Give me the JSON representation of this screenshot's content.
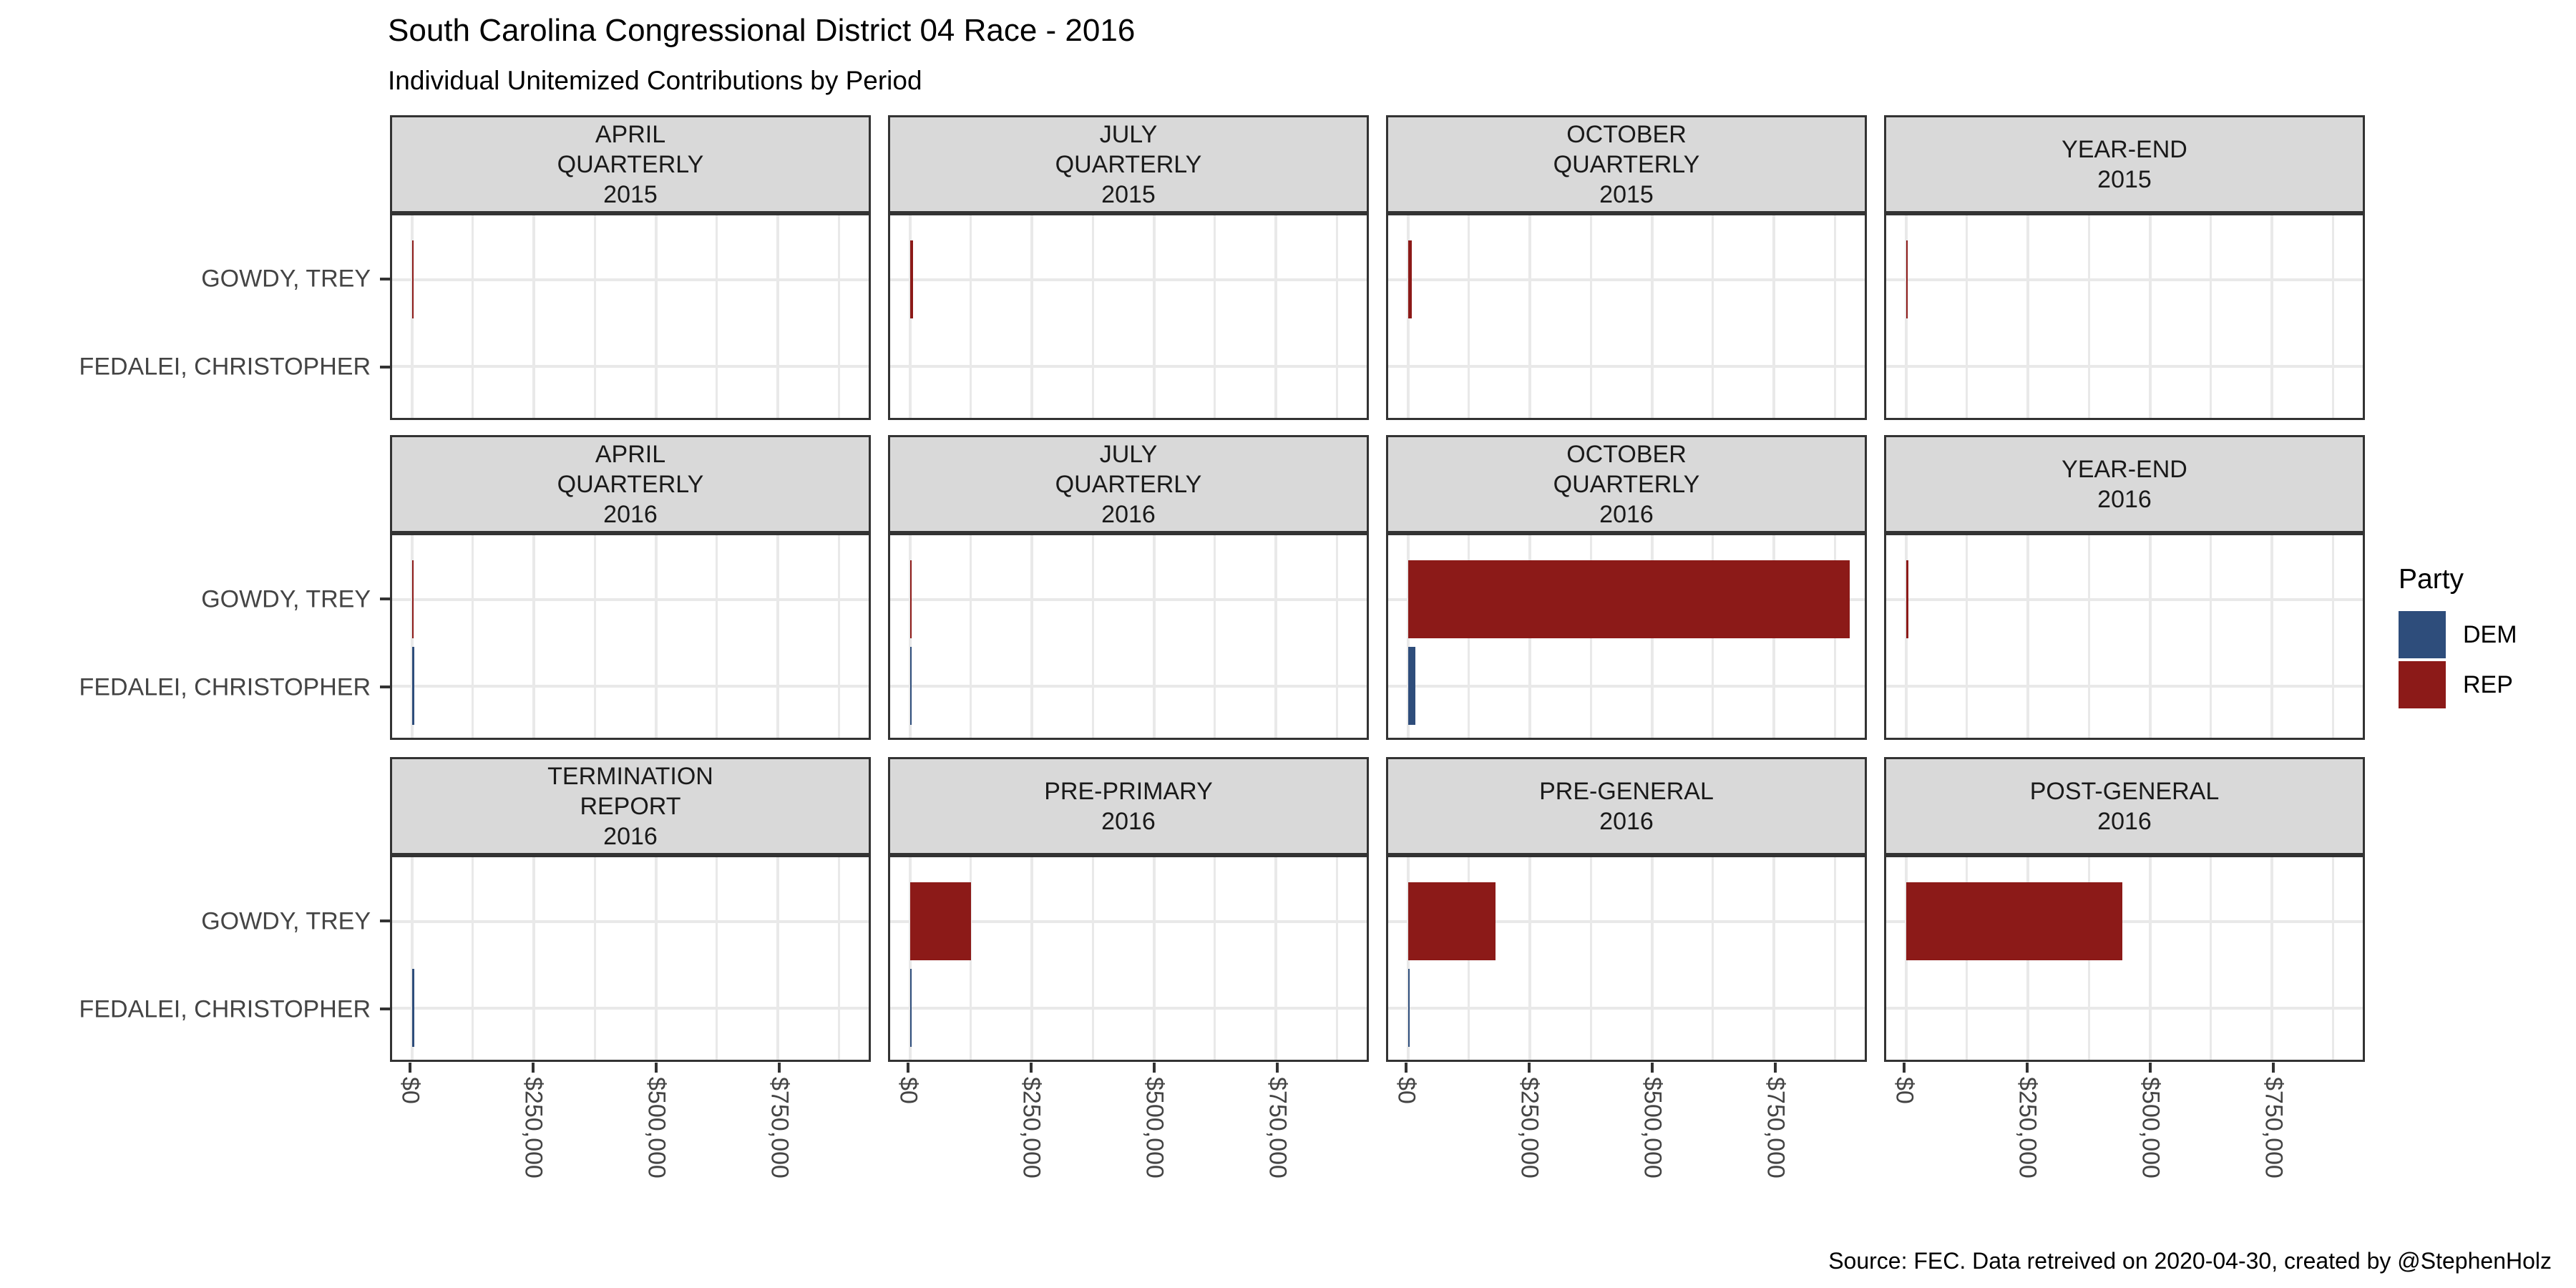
{
  "title": "South Carolina Congressional District 04 Race - 2016",
  "subtitle": "Individual Unitemized Contributions by Period",
  "caption": "Source: FEC. Data retreived on 2020-04-30, created by @StephenHolz",
  "y_categories": [
    "GOWDY, TREY",
    "FEDALEI, CHRISTOPHER"
  ],
  "x_ticks": [
    "$0",
    "$250,000",
    "$500,000",
    "$750,000"
  ],
  "legend": {
    "title": "Party",
    "items": [
      {
        "label": "DEM",
        "color": "#2E4D7B"
      },
      {
        "label": "REP",
        "color": "#8C1A18"
      }
    ]
  },
  "colors": {
    "dem": "#2E4D7B",
    "rep": "#8C1A18",
    "strip_background": "#D9D9D9",
    "panel_border": "#333333",
    "gridline": "#E9E9E9",
    "axis_text": "#444444"
  },
  "chart_data": {
    "type": "bar",
    "orientation": "horizontal",
    "title": "South Carolina Congressional District 04 Race - 2016",
    "subtitle": "Individual Unitemized Contributions by Period",
    "categories": [
      "GOWDY, TREY",
      "FEDALEI, CHRISTOPHER"
    ],
    "legend_position": "right",
    "grid": true,
    "x_axis": {
      "tick_values": [
        0,
        250000,
        500000,
        750000
      ],
      "tick_labels": [
        "$0",
        "$250,000",
        "$500,000",
        "$750,000"
      ],
      "minor_tick_values": [
        125000,
        375000,
        625000,
        875000
      ],
      "xlim": [
        0,
        937000
      ]
    },
    "facets": [
      {
        "label": "APRIL\nQUARTERLY\n2015",
        "row": 0,
        "col": 0,
        "bars": [
          {
            "candidate": "GOWDY, TREY",
            "party": "REP",
            "value": 4000
          }
        ]
      },
      {
        "label": "JULY\nQUARTERLY\n2015",
        "row": 0,
        "col": 1,
        "bars": [
          {
            "candidate": "GOWDY, TREY",
            "party": "REP",
            "value": 6000
          }
        ]
      },
      {
        "label": "OCTOBER\nQUARTERLY\n2015",
        "row": 0,
        "col": 2,
        "bars": [
          {
            "candidate": "GOWDY, TREY",
            "party": "REP",
            "value": 7000
          }
        ]
      },
      {
        "label": "YEAR-END\n2015",
        "row": 0,
        "col": 3,
        "bars": [
          {
            "candidate": "GOWDY, TREY",
            "party": "REP",
            "value": 4000
          }
        ]
      },
      {
        "label": "APRIL\nQUARTERLY\n2016",
        "row": 1,
        "col": 0,
        "bars": [
          {
            "candidate": "GOWDY, TREY",
            "party": "REP",
            "value": 3000
          },
          {
            "candidate": "FEDALEI, CHRISTOPHER",
            "party": "DEM",
            "value": 5000
          }
        ]
      },
      {
        "label": "JULY\nQUARTERLY\n2016",
        "row": 1,
        "col": 1,
        "bars": [
          {
            "candidate": "GOWDY, TREY",
            "party": "REP",
            "value": 4000
          },
          {
            "candidate": "FEDALEI, CHRISTOPHER",
            "party": "DEM",
            "value": 4000
          }
        ]
      },
      {
        "label": "OCTOBER\nQUARTERLY\n2016",
        "row": 1,
        "col": 2,
        "bars": [
          {
            "candidate": "GOWDY, TREY",
            "party": "REP",
            "value": 905000
          },
          {
            "candidate": "FEDALEI, CHRISTOPHER",
            "party": "DEM",
            "value": 15000
          }
        ]
      },
      {
        "label": "YEAR-END\n2016",
        "row": 1,
        "col": 3,
        "bars": [
          {
            "candidate": "GOWDY, TREY",
            "party": "REP",
            "value": 5000
          }
        ]
      },
      {
        "label": "TERMINATION\nREPORT\n2016",
        "row": 2,
        "col": 0,
        "bars": [
          {
            "candidate": "FEDALEI, CHRISTOPHER",
            "party": "DEM",
            "value": 5000
          }
        ]
      },
      {
        "label": "PRE-PRIMARY\n2016",
        "row": 2,
        "col": 1,
        "bars": [
          {
            "candidate": "GOWDY, TREY",
            "party": "REP",
            "value": 125000
          },
          {
            "candidate": "FEDALEI, CHRISTOPHER",
            "party": "DEM",
            "value": 4000
          }
        ]
      },
      {
        "label": "PRE-GENERAL\n2016",
        "row": 2,
        "col": 2,
        "bars": [
          {
            "candidate": "GOWDY, TREY",
            "party": "REP",
            "value": 180000
          },
          {
            "candidate": "FEDALEI, CHRISTOPHER",
            "party": "DEM",
            "value": 3000
          }
        ]
      },
      {
        "label": "POST-GENERAL\n2016",
        "row": 2,
        "col": 3,
        "bars": [
          {
            "candidate": "GOWDY, TREY",
            "party": "REP",
            "value": 443000
          }
        ]
      }
    ]
  }
}
